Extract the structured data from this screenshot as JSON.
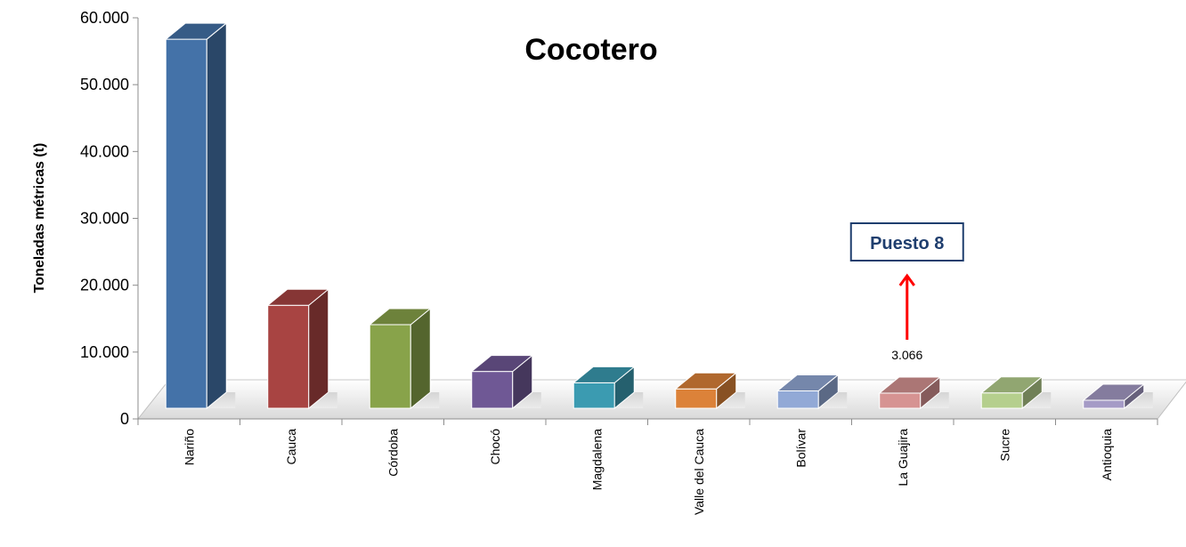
{
  "chart_data": {
    "type": "bar",
    "title": "Cocotero",
    "ylabel": "Toneladas métricas (t)",
    "xlabel": "",
    "ylim": [
      0,
      60000
    ],
    "yticks": [
      {
        "value": 0,
        "label": "0"
      },
      {
        "value": 10000,
        "label": "10.000"
      },
      {
        "value": 20000,
        "label": "20.000"
      },
      {
        "value": 30000,
        "label": "30.000"
      },
      {
        "value": 40000,
        "label": "40.000"
      },
      {
        "value": 50000,
        "label": "50.000"
      },
      {
        "value": 60000,
        "label": "60.000"
      }
    ],
    "categories": [
      "Nariño",
      "Cauca",
      "Córdoba",
      "Chocó",
      "Magdalena",
      "Valle del Cauca",
      "Bolívar",
      "La Guajira",
      "Sucre",
      "Antioquia"
    ],
    "values": [
      56000,
      16200,
      13300,
      6300,
      4600,
      3700,
      3400,
      3066,
      3100,
      2000
    ],
    "colors": [
      "#4472a8",
      "#a84442",
      "#88a34a",
      "#6f5895",
      "#3b9bb1",
      "#dc8239",
      "#92a9d6",
      "#d69392",
      "#b5cf8d",
      "#a59bc6"
    ],
    "grid": false,
    "legend": "none",
    "data_labels": [
      {
        "category": "La Guajira",
        "text": "3.066"
      }
    ],
    "annotations": [
      {
        "category": "La Guajira",
        "text": "Puesto 8",
        "arrow_color": "#ff0000"
      }
    ]
  }
}
